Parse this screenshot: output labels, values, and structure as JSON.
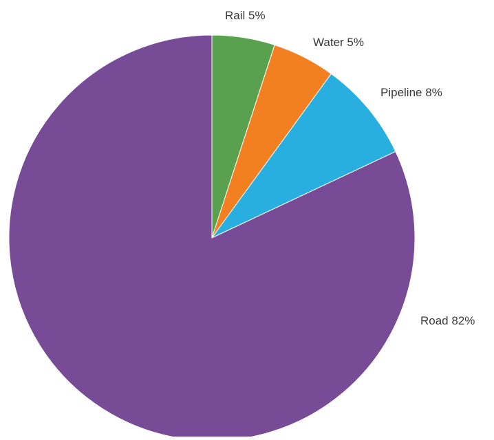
{
  "chart_data": {
    "type": "pie",
    "title": "",
    "legend": "none",
    "slices": [
      {
        "name": "Rail",
        "value": 5,
        "label": "Rail 5%",
        "color": "#59a14f"
      },
      {
        "name": "Water",
        "value": 5,
        "label": "Water 5%",
        "color": "#f28021"
      },
      {
        "name": "Pipeline",
        "value": 8,
        "label": "Pipeline 8%",
        "color": "#29aee0"
      },
      {
        "name": "Road",
        "value": 82,
        "label": "Road 82%",
        "color": "#774b96"
      }
    ]
  }
}
